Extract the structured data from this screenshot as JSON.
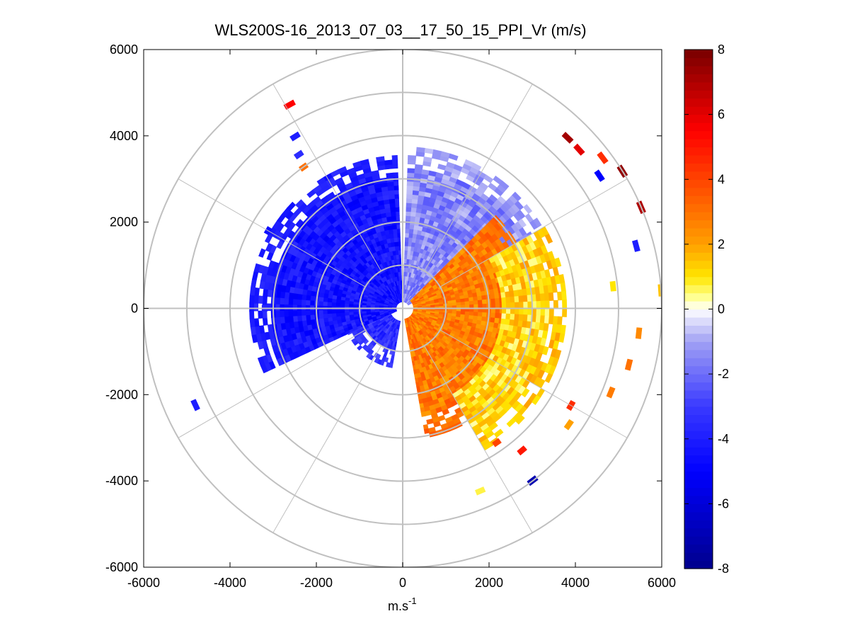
{
  "chart_data": {
    "type": "heatmap",
    "subtype": "polar-ppi",
    "title": "WLS200S-16_2013_07_03__17_50_15_PPI_Vr (m/s)",
    "xlabel": "m.s",
    "xlabel_superscript": "-1",
    "ylabel": "",
    "xlim": [
      -6000,
      6000
    ],
    "ylim": [
      -6000,
      6000
    ],
    "xticks": [
      -6000,
      -4000,
      -2000,
      0,
      2000,
      4000,
      6000
    ],
    "yticks": [
      -6000,
      -4000,
      -2000,
      0,
      2000,
      4000,
      6000
    ],
    "xtick_labels": [
      "-6000",
      "-4000",
      "-2000",
      "0",
      "2000",
      "4000",
      "6000"
    ],
    "ytick_labels": [
      "-6000",
      "-4000",
      "-2000",
      "0",
      "2000",
      "4000",
      "6000"
    ],
    "range_rings_m": [
      1000,
      2000,
      3000,
      4000,
      5000,
      6000
    ],
    "spoke_angles_deg": [
      0,
      30,
      60,
      90,
      120,
      150,
      180,
      210,
      240,
      270,
      300,
      330
    ],
    "colorbar": {
      "min": -8,
      "max": 8,
      "ticks": [
        -8,
        -6,
        -4,
        -2,
        0,
        2,
        4,
        6,
        8
      ],
      "tick_labels": [
        "-8",
        "-6",
        "-4",
        "-2",
        "0",
        "2",
        "4",
        "6",
        "8"
      ],
      "colormap": [
        {
          "v": -8,
          "c": "#00008c"
        },
        {
          "v": -5,
          "c": "#0000ff"
        },
        {
          "v": -3,
          "c": "#3a3aff"
        },
        {
          "v": -1,
          "c": "#a0a0f4"
        },
        {
          "v": 0,
          "c": "#ffffff"
        },
        {
          "v": 0.4,
          "c": "#ffff8c"
        },
        {
          "v": 1,
          "c": "#ffe600"
        },
        {
          "v": 2,
          "c": "#ffa000"
        },
        {
          "v": 3.5,
          "c": "#ff5a00"
        },
        {
          "v": 5.5,
          "c": "#ff0000"
        },
        {
          "v": 8,
          "c": "#780000"
        }
      ]
    },
    "sectors": [
      {
        "name": "negative-blue-sector",
        "az_from_deg": 245,
        "az_to_deg": 358,
        "range_m": [
          150,
          3500
        ],
        "vr": -4.3
      },
      {
        "name": "near-zero-sector",
        "az_from_deg": 2,
        "az_to_deg": 60,
        "range_m": [
          150,
          3700
        ],
        "vr": -1.5
      },
      {
        "name": "positive-inner-sector",
        "az_from_deg": 45,
        "az_to_deg": 170,
        "range_m": [
          250,
          3000
        ],
        "vr": 2.8
      },
      {
        "name": "positive-outer-sector",
        "az_from_deg": 60,
        "az_to_deg": 150,
        "range_m": [
          2300,
          3800
        ],
        "vr": 1.2
      },
      {
        "name": "negative-southwest-sector",
        "az_from_deg": 190,
        "az_to_deg": 245,
        "range_m": [
          300,
          1400
        ],
        "vr": -3.5
      }
    ],
    "scatter_patches": [
      {
        "az_deg": 331,
        "range_m": 5400,
        "vr": 5.5
      },
      {
        "az_deg": 328,
        "range_m": 4700,
        "vr": -4.0
      },
      {
        "az_deg": 326,
        "range_m": 4300,
        "vr": -3.5
      },
      {
        "az_deg": 325,
        "range_m": 4000,
        "vr": 3.0
      },
      {
        "az_deg": 44,
        "range_m": 5500,
        "vr": 7.2
      },
      {
        "az_deg": 48,
        "range_m": 5500,
        "vr": 6.0
      },
      {
        "az_deg": 53,
        "range_m": 5800,
        "vr": 4.5
      },
      {
        "az_deg": 56,
        "range_m": 5500,
        "vr": -5.0
      },
      {
        "az_deg": 58,
        "range_m": 6000,
        "vr": 7.5
      },
      {
        "az_deg": 67,
        "range_m": 6000,
        "vr": 7.0
      },
      {
        "az_deg": 75,
        "range_m": 5600,
        "vr": -4.0
      },
      {
        "az_deg": 84,
        "range_m": 4900,
        "vr": 1.0
      },
      {
        "az_deg": 86,
        "range_m": 6000,
        "vr": 1.5
      },
      {
        "az_deg": 96,
        "range_m": 5500,
        "vr": 2.5
      },
      {
        "az_deg": 104,
        "range_m": 5400,
        "vr": 3.0
      },
      {
        "az_deg": 112,
        "range_m": 5200,
        "vr": 2.8
      },
      {
        "az_deg": 120,
        "range_m": 4500,
        "vr": 4.5
      },
      {
        "az_deg": 125,
        "range_m": 4700,
        "vr": 2.0
      },
      {
        "az_deg": 140,
        "range_m": 4300,
        "vr": 5.0
      },
      {
        "az_deg": 145,
        "range_m": 3800,
        "vr": 4.0
      },
      {
        "az_deg": 157,
        "range_m": 4600,
        "vr": 0.7
      },
      {
        "az_deg": 143,
        "range_m": 5000,
        "vr": -7.0
      },
      {
        "az_deg": 245,
        "range_m": 5300,
        "vr": -4.0
      },
      {
        "az_deg": 270,
        "range_m": 3200,
        "vr": -3.8
      },
      {
        "az_deg": 300,
        "range_m": 3600,
        "vr": -4.5
      }
    ],
    "colors": {
      "grid": "#c0c0c0",
      "axes": "#000000",
      "background": "#ffffff"
    }
  }
}
